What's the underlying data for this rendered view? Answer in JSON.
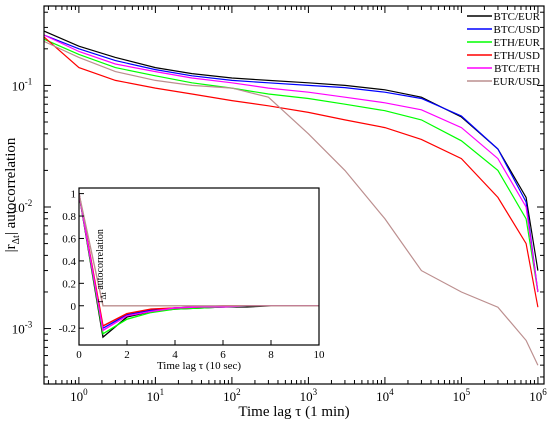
{
  "chart_data": [
    {
      "type": "line",
      "scale": "log-log",
      "xlabel_prefix": "Time lag τ (1 min)",
      "ylabel_main": "|r",
      "ylabel_sub": "Δt",
      "ylabel_suffix": "| autocorrelation",
      "xlim": [
        0.35,
        1200000
      ],
      "ylim": [
        0.00035,
        0.45
      ],
      "x_ticks": [
        {
          "value": 1,
          "base": "10",
          "exp": "0"
        },
        {
          "value": 10,
          "base": "10",
          "exp": "1"
        },
        {
          "value": 100,
          "base": "10",
          "exp": "2"
        },
        {
          "value": 1000,
          "base": "10",
          "exp": "3"
        },
        {
          "value": 10000,
          "base": "10",
          "exp": "4"
        },
        {
          "value": 100000,
          "base": "10",
          "exp": "5"
        },
        {
          "value": 1000000,
          "base": "10",
          "exp": "6"
        }
      ],
      "y_ticks": [
        {
          "value": 0.1,
          "base": "10",
          "exp": "-1"
        },
        {
          "value": 0.01,
          "base": "10",
          "exp": "-2"
        },
        {
          "value": 0.001,
          "base": "10",
          "exp": "-3"
        }
      ],
      "legend_position": "top-right",
      "series": [
        {
          "name": "BTC/EUR",
          "color": "#000000",
          "x": [
            0.35,
            1,
            3,
            10,
            30,
            100,
            300,
            1000,
            3000,
            10000,
            30000,
            100000,
            300000,
            700000,
            1000000
          ],
          "y": [
            0.28,
            0.21,
            0.17,
            0.14,
            0.125,
            0.115,
            0.11,
            0.105,
            0.1,
            0.092,
            0.08,
            0.055,
            0.03,
            0.012,
            0.003
          ]
        },
        {
          "name": "BTC/USD",
          "color": "#0000ff",
          "x": [
            0.35,
            1,
            3,
            10,
            30,
            100,
            300,
            1000,
            3000,
            10000,
            30000,
            100000,
            300000,
            700000,
            1000000
          ],
          "y": [
            0.26,
            0.2,
            0.16,
            0.135,
            0.12,
            0.11,
            0.105,
            0.1,
            0.096,
            0.088,
            0.078,
            0.056,
            0.03,
            0.011,
            0.002
          ]
        },
        {
          "name": "ETH/EUR",
          "color": "#00ff00",
          "x": [
            0.35,
            1,
            3,
            10,
            30,
            100,
            300,
            1000,
            3000,
            10000,
            30000,
            100000,
            300000,
            700000,
            1000000
          ],
          "y": [
            0.24,
            0.18,
            0.14,
            0.12,
            0.105,
            0.095,
            0.085,
            0.078,
            0.07,
            0.062,
            0.052,
            0.035,
            0.02,
            0.008,
            0.002
          ]
        },
        {
          "name": "ETH/USD",
          "color": "#ff0000",
          "x": [
            0.35,
            1,
            3,
            10,
            30,
            100,
            300,
            1000,
            3000,
            10000,
            30000,
            100000,
            300000,
            700000,
            1000000
          ],
          "y": [
            0.25,
            0.14,
            0.11,
            0.095,
            0.085,
            0.075,
            0.068,
            0.06,
            0.052,
            0.045,
            0.036,
            0.025,
            0.012,
            0.005,
            0.0015
          ]
        },
        {
          "name": "BTC/ETH",
          "color": "#ff00ff",
          "x": [
            0.35,
            1,
            3,
            10,
            30,
            100,
            300,
            1000,
            3000,
            10000,
            30000,
            100000,
            300000,
            700000,
            1000000
          ],
          "y": [
            0.26,
            0.19,
            0.15,
            0.13,
            0.115,
            0.105,
            0.095,
            0.088,
            0.08,
            0.072,
            0.063,
            0.045,
            0.025,
            0.01,
            0.002
          ]
        },
        {
          "name": "EUR/USD",
          "color": "#bc8f8f",
          "x": [
            0.35,
            1,
            3,
            10,
            30,
            100,
            300,
            1000,
            3000,
            10000,
            30000,
            100000,
            300000,
            700000,
            1000000
          ],
          "y": [
            0.23,
            0.17,
            0.13,
            0.11,
            0.1,
            0.095,
            0.08,
            0.04,
            0.02,
            0.008,
            0.003,
            0.002,
            0.0015,
            0.0008,
            0.0005
          ]
        }
      ]
    },
    {
      "type": "line",
      "scale": "linear",
      "xlabel": "Time lag τ (10 sec)",
      "ylabel_main": "r",
      "ylabel_sub": "Δt",
      "ylabel_suffix": " autocorrelation",
      "xlim": [
        0,
        10
      ],
      "ylim": [
        -0.35,
        1.05
      ],
      "x_ticks": [
        "0",
        "2",
        "4",
        "6",
        "8",
        "10"
      ],
      "y_ticks": [
        "1",
        "0.8",
        "0.6",
        "0.4",
        "0.2",
        "0",
        "-0.2"
      ],
      "y_tick_values": [
        1,
        0.8,
        0.6,
        0.4,
        0.2,
        0,
        -0.2
      ],
      "x_tick_values": [
        0,
        2,
        4,
        6,
        8,
        10
      ],
      "series": [
        {
          "name": "BTC/EUR",
          "color": "#000000",
          "x": [
            0,
            1,
            2,
            3,
            4,
            5,
            6,
            7,
            8,
            9,
            10
          ],
          "y": [
            1,
            -0.28,
            -0.1,
            -0.05,
            -0.03,
            -0.02,
            -0.01,
            -0.01,
            0,
            0,
            0
          ]
        },
        {
          "name": "BTC/USD",
          "color": "#0000ff",
          "x": [
            0,
            1,
            2,
            3,
            4,
            5,
            6,
            7,
            8,
            9,
            10
          ],
          "y": [
            1,
            -0.2,
            -0.08,
            -0.04,
            -0.02,
            -0.01,
            -0.01,
            0,
            0,
            0,
            0
          ]
        },
        {
          "name": "ETH/EUR",
          "color": "#00ff00",
          "x": [
            0,
            1,
            2,
            3,
            4,
            5,
            6,
            7,
            8,
            9,
            10
          ],
          "y": [
            1,
            -0.25,
            -0.12,
            -0.06,
            -0.03,
            -0.02,
            -0.01,
            0,
            0,
            0,
            0
          ]
        },
        {
          "name": "ETH/USD",
          "color": "#ff0000",
          "x": [
            0,
            1,
            2,
            3,
            4,
            5,
            6,
            7,
            8,
            9,
            10
          ],
          "y": [
            1,
            -0.18,
            -0.07,
            -0.03,
            -0.02,
            -0.01,
            0,
            0,
            0,
            0,
            0
          ]
        },
        {
          "name": "BTC/ETH",
          "color": "#ff00ff",
          "x": [
            0,
            1,
            2,
            3,
            4,
            5,
            6,
            7,
            8,
            9,
            10
          ],
          "y": [
            1,
            -0.22,
            -0.09,
            -0.05,
            -0.02,
            -0.01,
            -0.01,
            0,
            0,
            0,
            0
          ]
        },
        {
          "name": "EUR/USD",
          "color": "#bc8f8f",
          "x": [
            0,
            1,
            2,
            3,
            4,
            5,
            6,
            7,
            8,
            9,
            10
          ],
          "y": [
            1,
            0,
            0,
            0,
            0,
            0,
            0,
            0,
            0,
            0,
            0
          ]
        }
      ]
    }
  ]
}
